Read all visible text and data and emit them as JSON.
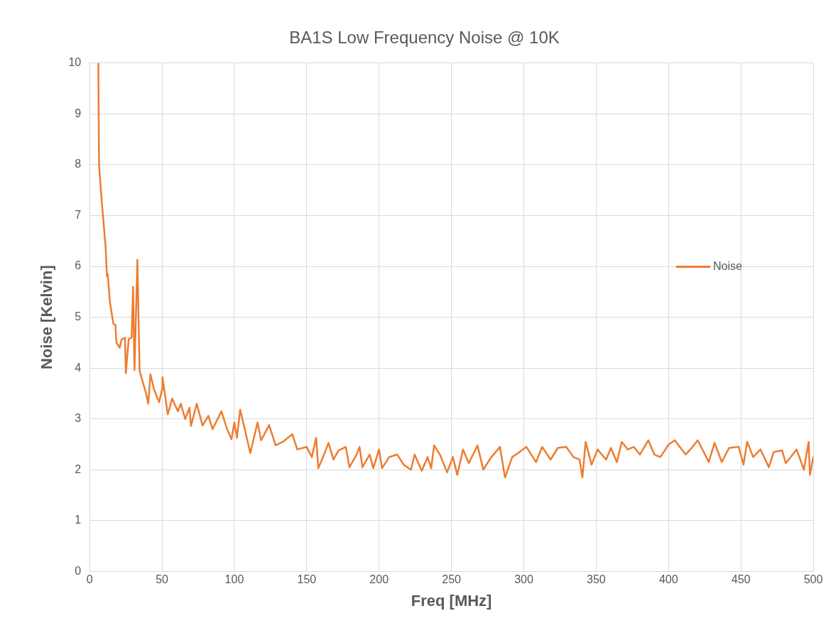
{
  "chart_data": {
    "type": "line",
    "title": "BA1S Low Frequency Noise @ 10K",
    "xlabel": "Freq [MHz]",
    "ylabel": "Noise [Kelvin]",
    "xlim": [
      0,
      500
    ],
    "xticks": [
      0,
      50,
      100,
      150,
      200,
      250,
      300,
      350,
      400,
      450,
      500
    ],
    "ylim": [
      0,
      10
    ],
    "yticks": [
      0,
      1,
      2,
      3,
      4,
      5,
      6,
      7,
      8,
      9,
      10
    ],
    "grid": true,
    "legend": "right",
    "marker": "none",
    "line_style": "solid",
    "series": [
      {
        "name": "Noise",
        "color": "#ed7d31",
        "x": [
          6,
          6.5,
          8.3,
          11,
          12,
          12.5,
          14,
          16.4,
          17.8,
          18.5,
          20.8,
          22,
          24.4,
          25,
          27,
          29,
          30,
          31,
          33,
          34.5,
          37,
          39,
          40.5,
          42,
          44.5,
          48,
          50,
          50.3,
          54,
          57,
          61,
          63,
          66,
          69,
          70,
          74,
          78,
          82,
          85,
          91,
          95,
          98,
          100,
          101.8,
          104,
          106.8,
          111,
          116,
          118.5,
          124,
          128.5,
          133.5,
          140,
          143.5,
          150,
          153.5,
          156.5,
          158,
          162,
          165,
          168.5,
          172,
          177,
          179.5,
          184.5,
          186.5,
          188.5,
          193.5,
          196,
          200,
          202,
          207,
          212.5,
          217,
          222,
          224.5,
          229.5,
          233.5,
          236,
          238,
          242,
          247,
          251,
          254,
          258,
          262,
          268,
          272,
          277,
          283.5,
          287,
          292,
          296,
          301.8,
          308.5,
          312.7,
          318.5,
          323.5,
          329.3,
          334.3,
          338.5,
          340.5,
          342.7,
          346.8,
          351,
          356.8,
          360.2,
          364.3,
          367.7,
          371.8,
          376,
          380.2,
          386,
          390.2,
          394.3,
          400.2,
          404.3,
          407.7,
          411.8,
          416,
          420.2,
          425.2,
          427.7,
          431.8,
          436.8,
          441.8,
          448.5,
          451.8,
          454.3,
          458.5,
          463.5,
          469.3,
          472.7,
          478.5,
          481,
          488.5,
          493.5,
          496.8,
          497.7,
          500
        ],
        "values": [
          10,
          8.0,
          7.3,
          6.4,
          5.8,
          5.85,
          5.3,
          4.87,
          4.85,
          4.5,
          4.4,
          4.56,
          4.6,
          3.9,
          4.57,
          4.6,
          5.6,
          3.96,
          6.13,
          3.95,
          3.7,
          3.5,
          3.3,
          3.88,
          3.58,
          3.33,
          3.58,
          3.82,
          3.09,
          3.4,
          3.15,
          3.3,
          3.0,
          3.22,
          2.86,
          3.3,
          2.87,
          3.06,
          2.8,
          3.15,
          2.8,
          2.6,
          2.93,
          2.63,
          3.18,
          2.85,
          2.33,
          2.93,
          2.58,
          2.88,
          2.48,
          2.55,
          2.7,
          2.4,
          2.45,
          2.25,
          2.63,
          2.03,
          2.3,
          2.53,
          2.2,
          2.38,
          2.45,
          2.05,
          2.3,
          2.45,
          2.05,
          2.3,
          2.03,
          2.4,
          2.03,
          2.25,
          2.3,
          2.1,
          2.0,
          2.3,
          1.98,
          2.25,
          2.03,
          2.48,
          2.3,
          1.95,
          2.25,
          1.9,
          2.4,
          2.13,
          2.48,
          2.0,
          2.23,
          2.45,
          1.85,
          2.25,
          2.33,
          2.45,
          2.15,
          2.45,
          2.2,
          2.43,
          2.45,
          2.25,
          2.2,
          1.85,
          2.55,
          2.1,
          2.4,
          2.2,
          2.43,
          2.15,
          2.55,
          2.4,
          2.45,
          2.3,
          2.58,
          2.3,
          2.25,
          2.5,
          2.58,
          2.45,
          2.3,
          2.43,
          2.58,
          2.3,
          2.15,
          2.53,
          2.15,
          2.43,
          2.45,
          2.1,
          2.55,
          2.25,
          2.4,
          2.05,
          2.35,
          2.38,
          2.13,
          2.4,
          2.0,
          2.55,
          1.9,
          2.25
        ]
      }
    ]
  }
}
